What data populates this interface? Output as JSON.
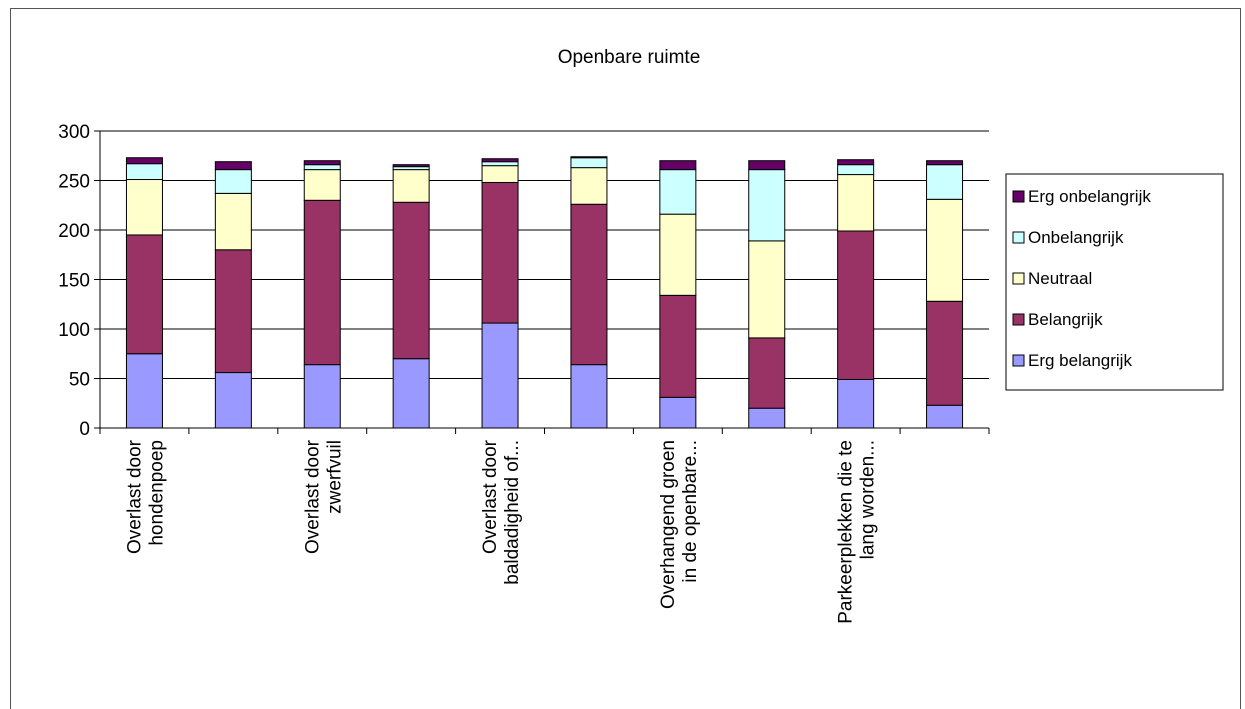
{
  "chart_data": {
    "type": "bar",
    "stacked": true,
    "title": "Openbare ruimte",
    "categories": [
      "Overlast door hondenpoep",
      "",
      "Overlast door zwerfvuil",
      "",
      "Overlast door baldadigheid of...",
      "",
      "Overhangend groen in de openbare...",
      "",
      "Parkeerplekken die te lang worden...",
      ""
    ],
    "category_label_lines": [
      [
        "Overlast door",
        "hondenpoep"
      ],
      [],
      [
        "Overlast door",
        "zwerfvuil"
      ],
      [],
      [
        "Overlast door",
        "baldadigheid of..."
      ],
      [],
      [
        "Overhangend groen",
        "in de openbare..."
      ],
      [],
      [
        "Parkeerplekken die te",
        "lang worden..."
      ],
      []
    ],
    "series": [
      {
        "name": "Erg belangrijk",
        "color": "#9999ff",
        "values": [
          75,
          56,
          64,
          70,
          106,
          64,
          31,
          20,
          49,
          23
        ]
      },
      {
        "name": "Belangrijk",
        "color": "#993366",
        "values": [
          120,
          124,
          166,
          158,
          142,
          162,
          103,
          71,
          150,
          105
        ]
      },
      {
        "name": "Neutraal",
        "color": "#ffffcc",
        "values": [
          56,
          57,
          31,
          33,
          17,
          37,
          82,
          98,
          57,
          103
        ]
      },
      {
        "name": "Onbelangrijk",
        "color": "#ccffff",
        "values": [
          16,
          24,
          5,
          3,
          4,
          10,
          45,
          72,
          10,
          35
        ]
      },
      {
        "name": "Erg onbelangrijk",
        "color": "#660066",
        "values": [
          6,
          8,
          4,
          2,
          3,
          1,
          9,
          9,
          5,
          4
        ]
      }
    ],
    "ylim": [
      0,
      300
    ],
    "yticks": [
      0,
      50,
      100,
      150,
      200,
      250,
      300
    ],
    "grid": true,
    "legend_position": "right"
  }
}
